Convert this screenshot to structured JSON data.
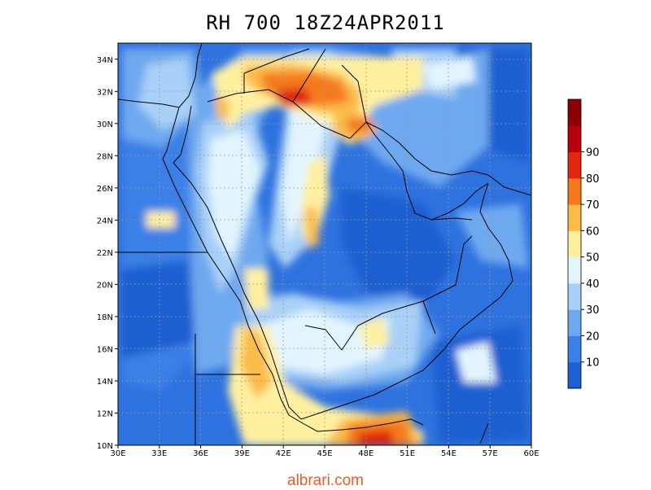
{
  "title": "RH 700  18Z24APR2011",
  "credit": "albrari.com",
  "map": {
    "variable": "RH 700",
    "lon_range": [
      30,
      60
    ],
    "lat_range": [
      10,
      35
    ],
    "lon_ticks": [
      "30E",
      "33E",
      "36E",
      "39E",
      "42E",
      "45E",
      "48E",
      "51E",
      "54E",
      "57E",
      "60E"
    ],
    "lat_ticks": [
      "10N",
      "12N",
      "14N",
      "16N",
      "18N",
      "20N",
      "22N",
      "24N",
      "26N",
      "28N",
      "30N",
      "32N",
      "34N"
    ],
    "gridlines": true,
    "colorbar": {
      "labels": [
        "10",
        "20",
        "30",
        "40",
        "50",
        "60",
        "70",
        "80",
        "90"
      ],
      "colors": [
        "#1e5fd1",
        "#3a80e6",
        "#6ea9f0",
        "#a9d0f7",
        "#e2f5ff",
        "#fff0a0",
        "#fbbc48",
        "#f57a1f",
        "#e0260f",
        "#b8000c",
        "#8a0005"
      ]
    }
  }
}
